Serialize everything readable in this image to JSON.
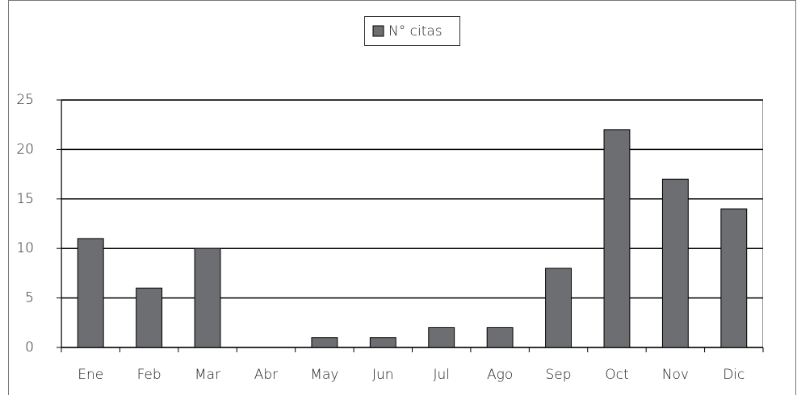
{
  "chart_data": {
    "type": "bar",
    "legend": "N° citas",
    "categories": [
      "Ene",
      "Feb",
      "Mar",
      "Abr",
      "May",
      "Jun",
      "Jul",
      "Ago",
      "Sep",
      "Oct",
      "Nov",
      "Dic"
    ],
    "values": [
      11,
      6,
      10,
      0,
      1,
      1,
      2,
      2,
      8,
      22,
      17,
      14
    ],
    "color": "#6d6e71",
    "ylim": [
      0,
      25
    ],
    "yticks": [
      0,
      5,
      10,
      15,
      20,
      25
    ],
    "grid": true
  }
}
